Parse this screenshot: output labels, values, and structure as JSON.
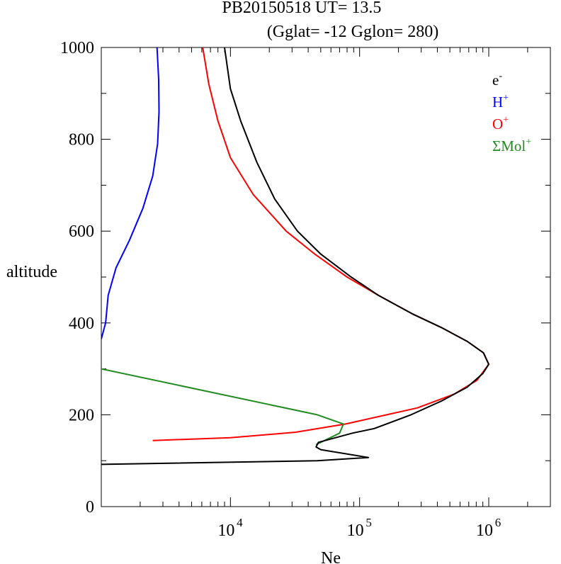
{
  "chart_data": {
    "type": "line",
    "title_line1": "PB20150518   UT=  13.5",
    "title_line2": "(Gglat= -12   Gglon=  280)",
    "xlabel": "Ne",
    "ylabel": "altitude",
    "x_scale": "log",
    "xlim": [
      1000,
      3000000
    ],
    "ylim": [
      0,
      1000
    ],
    "x_tick_labels": [
      {
        "value": 10000,
        "base": "10",
        "exp": "4"
      },
      {
        "value": 100000,
        "base": "10",
        "exp": "5"
      },
      {
        "value": 1000000,
        "base": "10",
        "exp": "6"
      }
    ],
    "y_ticks": [
      0,
      200,
      400,
      600,
      800,
      1000
    ],
    "legend_position": "top-right",
    "series": [
      {
        "name": "e",
        "sup": "-",
        "color": "#000000",
        "points": [
          [
            1000,
            92
          ],
          [
            47000,
            100
          ],
          [
            117000,
            107
          ],
          [
            50000,
            124
          ],
          [
            46000,
            130
          ],
          [
            48000,
            140
          ],
          [
            88000,
            160
          ],
          [
            130000,
            170
          ],
          [
            250000,
            200
          ],
          [
            430000,
            230
          ],
          [
            680000,
            260
          ],
          [
            900000,
            290
          ],
          [
            1000000,
            310
          ],
          [
            910000,
            335
          ],
          [
            680000,
            360
          ],
          [
            430000,
            390
          ],
          [
            255000,
            420
          ],
          [
            140000,
            460
          ],
          [
            86000,
            500
          ],
          [
            50000,
            550
          ],
          [
            33000,
            600
          ],
          [
            22000,
            670
          ],
          [
            16000,
            750
          ],
          [
            12000,
            840
          ],
          [
            10000,
            910
          ],
          [
            9000,
            1000
          ]
        ]
      },
      {
        "name": "H",
        "sup": "+",
        "color": "#0000ff",
        "points": [
          [
            1000,
            365
          ],
          [
            1080,
            400
          ],
          [
            1130,
            460
          ],
          [
            1300,
            520
          ],
          [
            1650,
            580
          ],
          [
            2100,
            650
          ],
          [
            2500,
            720
          ],
          [
            2730,
            790
          ],
          [
            2800,
            860
          ],
          [
            2780,
            930
          ],
          [
            2700,
            1000
          ]
        ]
      },
      {
        "name": "O",
        "sup": "+",
        "color": "#ff0000",
        "points": [
          [
            2500,
            144
          ],
          [
            10000,
            150
          ],
          [
            32000,
            162
          ],
          [
            78000,
            180
          ],
          [
            140000,
            196
          ],
          [
            280000,
            215
          ],
          [
            540000,
            245
          ],
          [
            810000,
            275
          ],
          [
            1000000,
            310
          ],
          [
            910000,
            335
          ],
          [
            680000,
            360
          ],
          [
            430000,
            390
          ],
          [
            255000,
            420
          ],
          [
            140000,
            460
          ],
          [
            80000,
            500
          ],
          [
            45000,
            550
          ],
          [
            27000,
            600
          ],
          [
            15000,
            680
          ],
          [
            10000,
            760
          ],
          [
            8000,
            840
          ],
          [
            6800,
            920
          ],
          [
            6100,
            1000
          ]
        ]
      },
      {
        "name": "ΣMol",
        "sup": "+",
        "color": "#228b22",
        "points": [
          [
            1000,
            300
          ],
          [
            47000,
            200
          ],
          [
            75000,
            180
          ],
          [
            70000,
            160
          ],
          [
            50000,
            140
          ],
          [
            46000,
            135
          ]
        ]
      }
    ]
  }
}
